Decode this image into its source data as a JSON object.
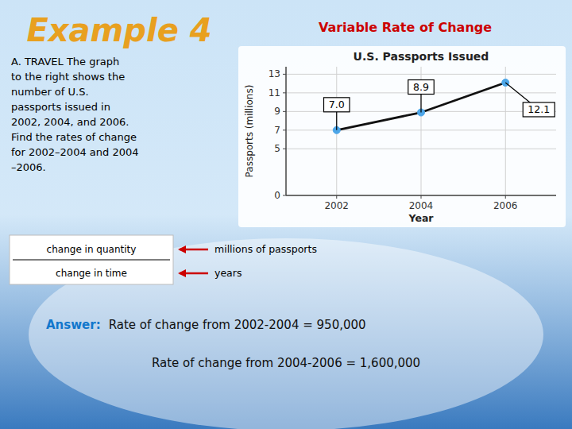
{
  "page": {
    "title": "Example 4",
    "title_color": "#e8a020",
    "subtitle": "Variable Rate of Change",
    "subtitle_color": "#cc0000",
    "text": "A. TRAVEL  The graph\nto the right shows the\nnumber of U.S.\npassports issued in\n2002, 2004, and 2006.\nFind the rates of change\nfor 2002–2004 and 2004\n–2006.",
    "fraction_top": "change in quantity",
    "fraction_bottom": "change in time",
    "arrow_labels": [
      "millions of passports",
      "years"
    ],
    "arrow_color": "#cc0000",
    "answer_prefix": "Answer:",
    "answer_prefix_color": "#1177cc",
    "answer_lines": [
      "Rate of change from 2002-2004 = 950,000",
      "Rate of change from 2004-2006 = 1,600,000"
    ],
    "answer_color": "#111111",
    "background": [
      "#cce4f7",
      "#3a7abf"
    ]
  },
  "chart_data": {
    "type": "line",
    "title": "U.S. Passports Issued",
    "x_label": "Year",
    "y_label": "Passports (millions)",
    "x": [
      2002,
      2004,
      2006
    ],
    "series": [
      {
        "values": [
          7.0,
          8.9,
          12.1
        ],
        "value_labels": [
          "7.0",
          "8.9",
          "12.1"
        ],
        "color": "#111111",
        "marker": "circle",
        "colors": [
          "#4da6e8",
          "#4da6e8",
          "#4da6e8"
        ]
      }
    ],
    "xlim": [
      2000.8,
      2007.2
    ],
    "xticks": [
      2002,
      2004,
      2006
    ],
    "ylim": [
      0,
      13.8
    ],
    "yticks": [
      0,
      5,
      7,
      9,
      11,
      13
    ],
    "grid": true,
    "data_labels": true
  }
}
